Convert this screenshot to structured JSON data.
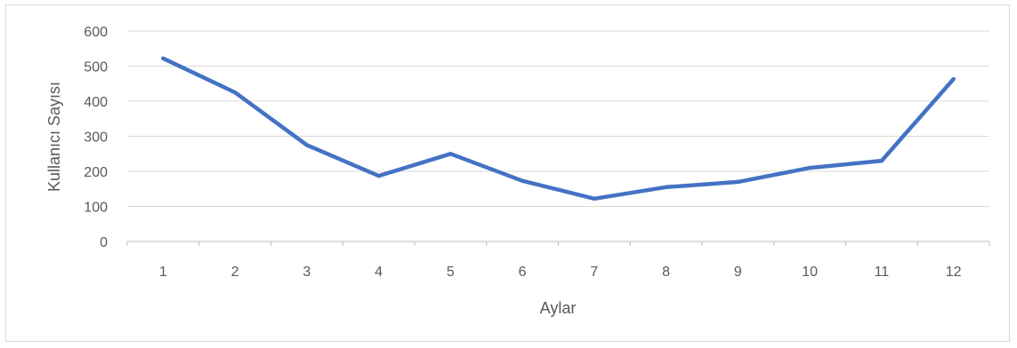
{
  "chart_data": {
    "type": "line",
    "title": "",
    "xlabel": "Aylar",
    "ylabel": "Kullanıcı Sayısı",
    "categories": [
      "1",
      "2",
      "3",
      "4",
      "5",
      "6",
      "7",
      "8",
      "9",
      "10",
      "11",
      "12"
    ],
    "series": [
      {
        "values": [
          522,
          425,
          275,
          187,
          250,
          173,
          122,
          155,
          170,
          210,
          230,
          463
        ],
        "color": "#4472c4"
      }
    ],
    "ylim": [
      0,
      600
    ],
    "yticks": [
      0,
      100,
      200,
      300,
      400,
      500,
      600
    ],
    "grid": true,
    "legend": "none",
    "gridColor": "#d9d9d9",
    "axisColor": "#bfbfbf"
  }
}
